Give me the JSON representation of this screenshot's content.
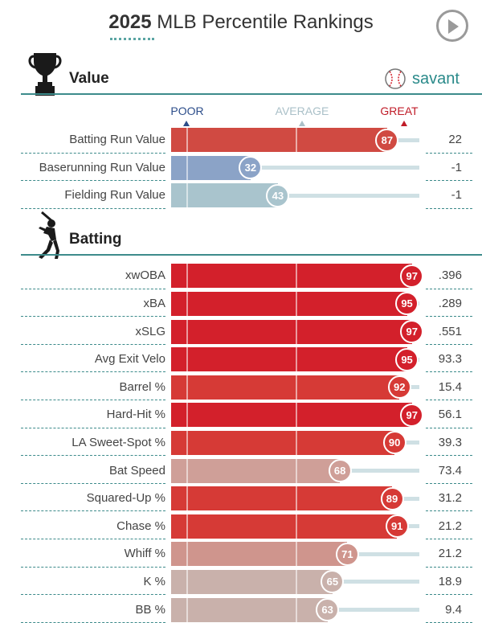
{
  "header": {
    "year": "2025",
    "title": "MLB Percentile Rankings"
  },
  "value_section": {
    "title": "Value",
    "brand": "savant",
    "scale": {
      "poor": "POOR",
      "average": "AVERAGE",
      "great": "GREAT"
    },
    "rows": [
      {
        "label": "Batting Run Value",
        "percentile": 87,
        "value": "22",
        "color": "#d04a42"
      },
      {
        "label": "Baserunning Run Value",
        "percentile": 32,
        "value": "-1",
        "color": "#8ba3c7"
      },
      {
        "label": "Fielding Run Value",
        "percentile": 43,
        "value": "-1",
        "color": "#a9c4cd"
      }
    ]
  },
  "batting_section": {
    "title": "Batting",
    "rows": [
      {
        "label": "xwOBA",
        "percentile": 97,
        "value": ".396",
        "color": "#d3202b"
      },
      {
        "label": "xBA",
        "percentile": 95,
        "value": ".289",
        "color": "#d3202b"
      },
      {
        "label": "xSLG",
        "percentile": 97,
        "value": ".551",
        "color": "#d3202b"
      },
      {
        "label": "Avg Exit Velo",
        "percentile": 95,
        "value": "93.3",
        "color": "#d3202b"
      },
      {
        "label": "Barrel %",
        "percentile": 92,
        "value": "15.4",
        "color": "#d63a36"
      },
      {
        "label": "Hard-Hit %",
        "percentile": 97,
        "value": "56.1",
        "color": "#d3202b"
      },
      {
        "label": "LA Sweet-Spot %",
        "percentile": 90,
        "value": "39.3",
        "color": "#d63a36"
      },
      {
        "label": "Bat Speed",
        "percentile": 68,
        "value": "73.4",
        "color": "#cf9f98"
      },
      {
        "label": "Squared-Up %",
        "percentile": 89,
        "value": "31.2",
        "color": "#d63a36"
      },
      {
        "label": "Chase %",
        "percentile": 91,
        "value": "21.2",
        "color": "#d63a36"
      },
      {
        "label": "Whiff %",
        "percentile": 71,
        "value": "21.2",
        "color": "#cf958d"
      },
      {
        "label": "K %",
        "percentile": 65,
        "value": "18.9",
        "color": "#c9b1ab"
      },
      {
        "label": "BB %",
        "percentile": 63,
        "value": "9.4",
        "color": "#c9b1ab"
      }
    ]
  },
  "icons": {
    "play": "play-icon",
    "trophy": "trophy-icon",
    "batter": "batter-icon",
    "baseball": "baseball-icon"
  }
}
